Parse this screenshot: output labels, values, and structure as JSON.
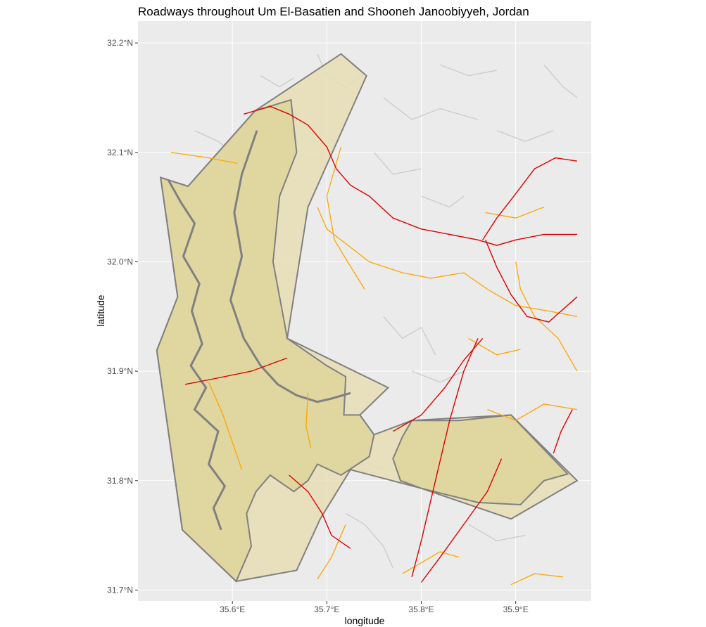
{
  "title": "Roadways throughout Um El-Basatien and Shooneh Janoobiyyeh, Jordan",
  "axes": {
    "x_label": "longitude",
    "y_label": "latitude",
    "x_ticks": [
      {
        "value": 35.6,
        "label": "35.6°E"
      },
      {
        "value": 35.7,
        "label": "35.7°E"
      },
      {
        "value": 35.8,
        "label": "35.8°E"
      },
      {
        "value": 35.9,
        "label": "35.9°E"
      }
    ],
    "y_ticks": [
      {
        "value": 31.7,
        "label": "31.7°N"
      },
      {
        "value": 31.8,
        "label": "31.8°N"
      },
      {
        "value": 31.9,
        "label": "31.9°N"
      },
      {
        "value": 32.0,
        "label": "32.0°N"
      },
      {
        "value": 32.1,
        "label": "32.1°N"
      },
      {
        "value": 32.2,
        "label": "32.2°N"
      }
    ],
    "xlim": [
      35.5,
      35.98
    ],
    "ylim": [
      31.69,
      32.22
    ]
  },
  "colors": {
    "panel_bg": "#ebebeb",
    "grid_major": "#ffffff",
    "district_fill": "#e8ddb5",
    "district_stroke": "#808080",
    "inner_fill": "#dfd59b",
    "primary_road": "#e00000",
    "secondary_road": "#ffa500",
    "minor_road": "#c8c8c8"
  },
  "map_data": {
    "type": "map",
    "outer_district": [
      [
        35.524,
        32.077
      ],
      [
        35.553,
        32.069
      ],
      [
        35.624,
        32.138
      ],
      [
        35.715,
        32.19
      ],
      [
        35.742,
        32.17
      ],
      [
        35.68,
        32.05
      ],
      [
        35.658,
        31.93
      ],
      [
        35.765,
        31.885
      ],
      [
        35.735,
        31.86
      ],
      [
        35.75,
        31.842
      ],
      [
        35.79,
        31.855
      ],
      [
        35.895,
        31.86
      ],
      [
        35.965,
        31.8
      ],
      [
        35.895,
        31.765
      ],
      [
        35.8,
        31.793
      ],
      [
        35.725,
        31.81
      ],
      [
        35.693,
        31.765
      ],
      [
        35.668,
        31.718
      ],
      [
        35.604,
        31.708
      ],
      [
        35.547,
        31.755
      ],
      [
        35.52,
        31.919
      ],
      [
        35.542,
        31.968
      ]
    ],
    "inner_region": [
      [
        35.524,
        32.077
      ],
      [
        35.553,
        32.069
      ],
      [
        35.624,
        32.138
      ],
      [
        35.662,
        32.148
      ],
      [
        35.668,
        32.1
      ],
      [
        35.65,
        32.06
      ],
      [
        35.643,
        32.0
      ],
      [
        35.656,
        31.94
      ],
      [
        35.658,
        31.93
      ],
      [
        35.7,
        31.905
      ],
      [
        35.72,
        31.895
      ],
      [
        35.718,
        31.86
      ],
      [
        35.735,
        31.86
      ],
      [
        35.75,
        31.842
      ],
      [
        35.745,
        31.822
      ],
      [
        35.715,
        31.805
      ],
      [
        35.69,
        31.815
      ],
      [
        35.68,
        31.8
      ],
      [
        35.665,
        31.79
      ],
      [
        35.64,
        31.805
      ],
      [
        35.625,
        31.79
      ],
      [
        35.615,
        31.77
      ],
      [
        35.62,
        31.74
      ],
      [
        35.604,
        31.708
      ],
      [
        35.547,
        31.755
      ],
      [
        35.52,
        31.919
      ],
      [
        35.542,
        31.968
      ]
    ],
    "east_inner": [
      [
        35.79,
        31.855
      ],
      [
        35.84,
        31.855
      ],
      [
        35.895,
        31.86
      ],
      [
        35.955,
        31.806
      ],
      [
        35.93,
        31.8
      ],
      [
        35.905,
        31.778
      ],
      [
        35.86,
        31.78
      ],
      [
        35.8,
        31.793
      ],
      [
        35.778,
        31.8
      ],
      [
        35.77,
        31.82
      ],
      [
        35.78,
        31.84
      ]
    ],
    "west_river": [
      [
        35.532,
        32.075
      ],
      [
        35.545,
        32.055
      ],
      [
        35.56,
        32.035
      ],
      [
        35.548,
        32.005
      ],
      [
        35.565,
        31.98
      ],
      [
        35.557,
        31.955
      ],
      [
        35.568,
        31.925
      ],
      [
        35.556,
        31.905
      ],
      [
        35.572,
        31.885
      ],
      [
        35.56,
        31.865
      ],
      [
        35.585,
        31.845
      ],
      [
        35.575,
        31.815
      ],
      [
        35.592,
        31.795
      ],
      [
        35.58,
        31.775
      ],
      [
        35.588,
        31.755
      ]
    ],
    "mid_river": [
      [
        35.626,
        32.12
      ],
      [
        35.61,
        32.08
      ],
      [
        35.602,
        32.045
      ],
      [
        35.61,
        32.005
      ],
      [
        35.598,
        31.965
      ],
      [
        35.612,
        31.93
      ],
      [
        35.63,
        31.905
      ],
      [
        35.648,
        31.888
      ],
      [
        35.668,
        31.878
      ],
      [
        35.69,
        31.872
      ],
      [
        35.705,
        31.875
      ],
      [
        35.725,
        31.88
      ]
    ],
    "primary_roads": [
      [
        [
          35.612,
          32.135
        ],
        [
          35.64,
          32.142
        ],
        [
          35.66,
          32.135
        ],
        [
          35.68,
          32.125
        ],
        [
          35.7,
          32.105
        ],
        [
          35.71,
          32.085
        ],
        [
          35.725,
          32.07
        ],
        [
          35.745,
          32.06
        ],
        [
          35.77,
          32.04
        ],
        [
          35.8,
          32.03
        ],
        [
          35.83,
          32.025
        ],
        [
          35.86,
          32.02
        ],
        [
          35.88,
          32.015
        ],
        [
          35.9,
          32.02
        ],
        [
          35.93,
          32.025
        ],
        [
          35.965,
          32.025
        ]
      ],
      [
        [
          35.865,
          32.02
        ],
        [
          35.88,
          32.04
        ],
        [
          35.898,
          32.06
        ],
        [
          35.92,
          32.085
        ],
        [
          35.942,
          32.095
        ],
        [
          35.965,
          32.092
        ]
      ],
      [
        [
          35.868,
          32.02
        ],
        [
          35.88,
          31.995
        ],
        [
          35.895,
          31.97
        ],
        [
          35.912,
          31.95
        ],
        [
          35.935,
          31.945
        ],
        [
          35.965,
          31.968
        ]
      ],
      [
        [
          35.55,
          31.888
        ],
        [
          35.58,
          31.893
        ],
        [
          35.62,
          31.9
        ],
        [
          35.658,
          31.912
        ]
      ],
      [
        [
          35.8,
          31.707
        ],
        [
          35.82,
          31.73
        ],
        [
          35.845,
          31.76
        ],
        [
          35.87,
          31.79
        ],
        [
          35.885,
          31.82
        ]
      ],
      [
        [
          35.79,
          31.712
        ],
        [
          35.8,
          31.745
        ],
        [
          35.815,
          31.8
        ],
        [
          35.83,
          31.855
        ],
        [
          35.845,
          31.9
        ],
        [
          35.86,
          31.93
        ]
      ],
      [
        [
          35.77,
          31.845
        ],
        [
          35.8,
          31.86
        ],
        [
          35.825,
          31.885
        ],
        [
          35.845,
          31.91
        ],
        [
          35.865,
          31.93
        ]
      ],
      [
        [
          35.66,
          31.805
        ],
        [
          35.68,
          31.79
        ],
        [
          35.695,
          31.77
        ],
        [
          35.705,
          31.75
        ],
        [
          35.725,
          31.738
        ]
      ],
      [
        [
          35.96,
          31.865
        ],
        [
          35.948,
          31.845
        ],
        [
          35.94,
          31.825
        ]
      ]
    ],
    "secondary_roads": [
      [
        [
          35.535,
          32.1
        ],
        [
          35.575,
          32.095
        ],
        [
          35.605,
          32.09
        ]
      ],
      [
        [
          35.715,
          32.105
        ],
        [
          35.7,
          32.06
        ],
        [
          35.708,
          32.02
        ],
        [
          35.722,
          32.0
        ],
        [
          35.74,
          31.975
        ]
      ],
      [
        [
          35.69,
          32.05
        ],
        [
          35.7,
          32.03
        ],
        [
          35.745,
          32.0
        ],
        [
          35.78,
          31.99
        ],
        [
          35.81,
          31.985
        ],
        [
          35.845,
          31.99
        ],
        [
          35.87,
          31.975
        ],
        [
          35.9,
          31.96
        ],
        [
          35.935,
          31.955
        ],
        [
          35.965,
          31.95
        ]
      ],
      [
        [
          35.868,
          32.045
        ],
        [
          35.9,
          32.04
        ],
        [
          35.93,
          32.05
        ]
      ],
      [
        [
          35.9,
          32.0
        ],
        [
          35.905,
          31.975
        ],
        [
          35.92,
          31.95
        ],
        [
          35.945,
          31.93
        ],
        [
          35.965,
          31.9
        ]
      ],
      [
        [
          35.85,
          31.93
        ],
        [
          35.88,
          31.915
        ],
        [
          35.905,
          31.92
        ]
      ],
      [
        [
          35.87,
          31.865
        ],
        [
          35.9,
          31.855
        ],
        [
          35.93,
          31.87
        ],
        [
          35.965,
          31.865
        ]
      ],
      [
        [
          35.575,
          31.89
        ],
        [
          35.59,
          31.86
        ],
        [
          35.6,
          31.835
        ],
        [
          35.61,
          31.81
        ]
      ],
      [
        [
          35.68,
          31.88
        ],
        [
          35.678,
          31.85
        ],
        [
          35.683,
          31.83
        ]
      ],
      [
        [
          35.72,
          31.76
        ],
        [
          35.705,
          31.73
        ],
        [
          35.69,
          31.71
        ]
      ],
      [
        [
          35.78,
          31.715
        ],
        [
          35.82,
          31.735
        ],
        [
          35.84,
          31.73
        ]
      ],
      [
        [
          35.895,
          31.705
        ],
        [
          35.92,
          31.715
        ],
        [
          35.95,
          31.712
        ]
      ]
    ],
    "minor_roads": [
      [
        [
          35.69,
          32.19
        ],
        [
          35.7,
          32.17
        ],
        [
          35.72,
          32.16
        ],
        [
          35.74,
          32.172
        ]
      ],
      [
        [
          35.76,
          32.15
        ],
        [
          35.79,
          32.13
        ],
        [
          35.82,
          32.14
        ],
        [
          35.86,
          32.13
        ]
      ],
      [
        [
          35.82,
          32.18
        ],
        [
          35.85,
          32.17
        ],
        [
          35.88,
          32.175
        ]
      ],
      [
        [
          35.75,
          32.1
        ],
        [
          35.77,
          32.08
        ],
        [
          35.8,
          32.085
        ]
      ],
      [
        [
          35.88,
          32.12
        ],
        [
          35.91,
          32.11
        ],
        [
          35.94,
          32.12
        ]
      ],
      [
        [
          35.8,
          32.06
        ],
        [
          35.83,
          32.05
        ],
        [
          35.845,
          32.06
        ]
      ],
      [
        [
          35.76,
          31.95
        ],
        [
          35.78,
          31.93
        ],
        [
          35.8,
          31.94
        ],
        [
          35.815,
          31.915
        ]
      ],
      [
        [
          35.79,
          31.9
        ],
        [
          35.82,
          31.89
        ],
        [
          35.845,
          31.9
        ]
      ],
      [
        [
          35.7,
          31.84
        ],
        [
          35.73,
          31.82
        ],
        [
          35.76,
          31.81
        ]
      ],
      [
        [
          35.72,
          31.77
        ],
        [
          35.74,
          31.76
        ],
        [
          35.76,
          31.74
        ],
        [
          35.77,
          31.72
        ]
      ],
      [
        [
          35.85,
          31.76
        ],
        [
          35.88,
          31.745
        ],
        [
          35.91,
          31.75
        ]
      ],
      [
        [
          35.56,
          32.12
        ],
        [
          35.585,
          32.11
        ],
        [
          35.6,
          32.1
        ]
      ],
      [
        [
          35.93,
          32.18
        ],
        [
          35.95,
          32.16
        ],
        [
          35.965,
          32.15
        ]
      ],
      [
        [
          35.63,
          32.17
        ],
        [
          35.65,
          32.16
        ],
        [
          35.665,
          32.168
        ]
      ]
    ]
  }
}
